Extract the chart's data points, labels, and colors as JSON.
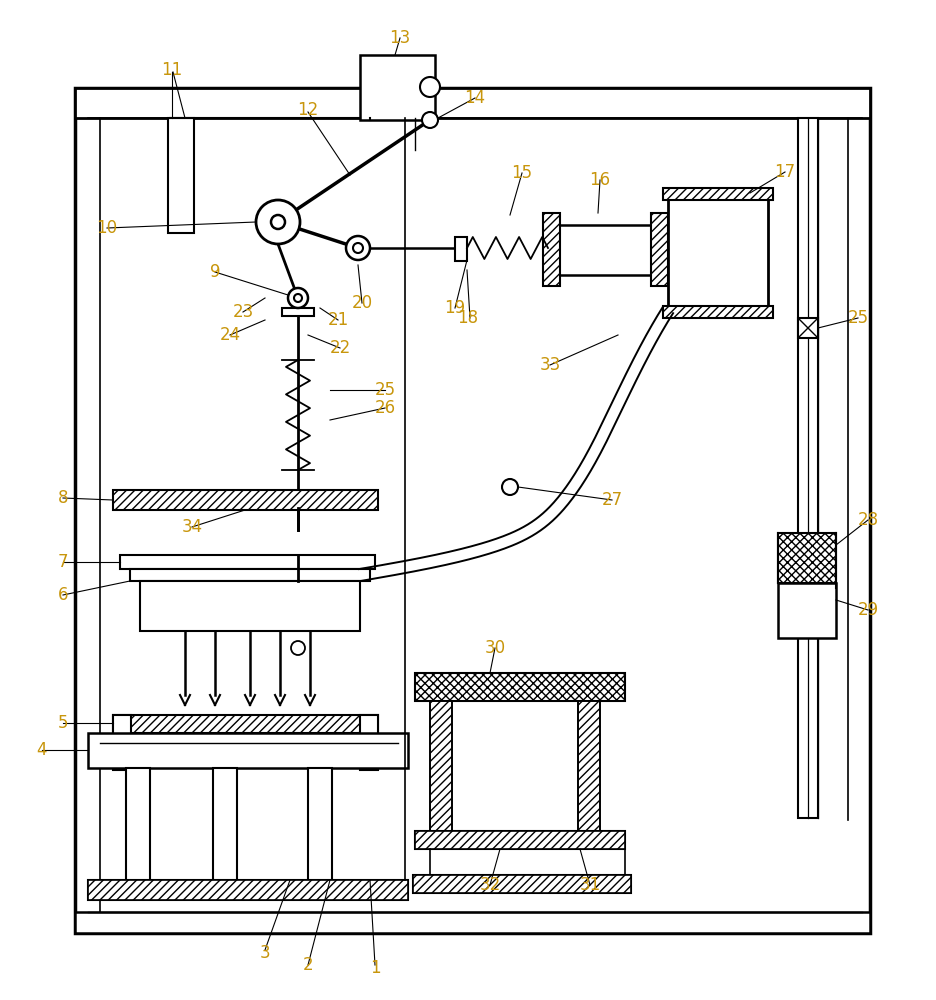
{
  "fig_width": 9.37,
  "fig_height": 10.0,
  "bg_color": "#ffffff",
  "label_color": "#c8960c",
  "label_fontsize": 12
}
